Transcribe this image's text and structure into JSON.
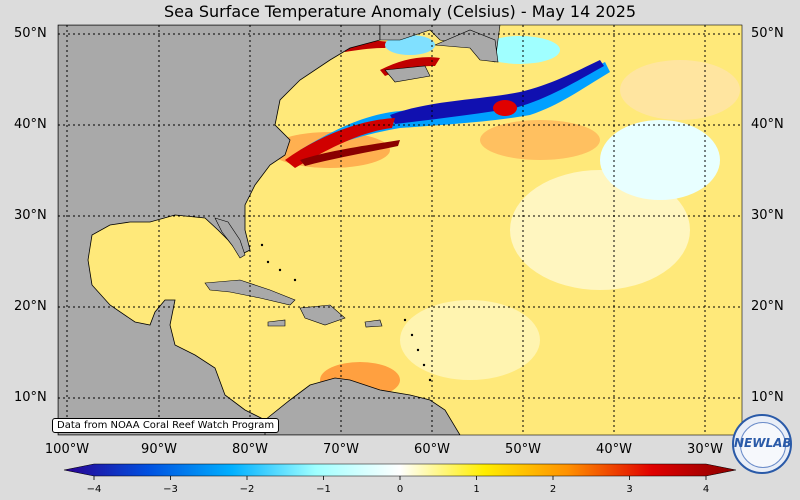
{
  "title": "Sea Surface Temperature Anomaly (Celsius) - May 14 2025",
  "credit": "Data from NOAA Coral Reef Watch Program",
  "logo_text": "NEWLAB",
  "latitude_labels": [
    "50°N",
    "40°N",
    "30°N",
    "20°N",
    "10°N"
  ],
  "longitude_labels": [
    "100°W",
    "90°W",
    "80°W",
    "70°W",
    "60°W",
    "50°W",
    "40°W",
    "30°W"
  ],
  "colorbar": {
    "ticks": [
      "−4",
      "−3",
      "−2",
      "−1",
      "0",
      "1",
      "2",
      "3",
      "4"
    ],
    "min": -4,
    "max": 4,
    "colors": [
      "#2a0090",
      "#0050e0",
      "#00b0ff",
      "#a0ffff",
      "#ffffff",
      "#ffee00",
      "#ff9000",
      "#e00000",
      "#8a0000"
    ]
  },
  "colors": {
    "land": "#a9a9a9",
    "water_base": "#ffe97a",
    "background": "#dcdcdc"
  }
}
